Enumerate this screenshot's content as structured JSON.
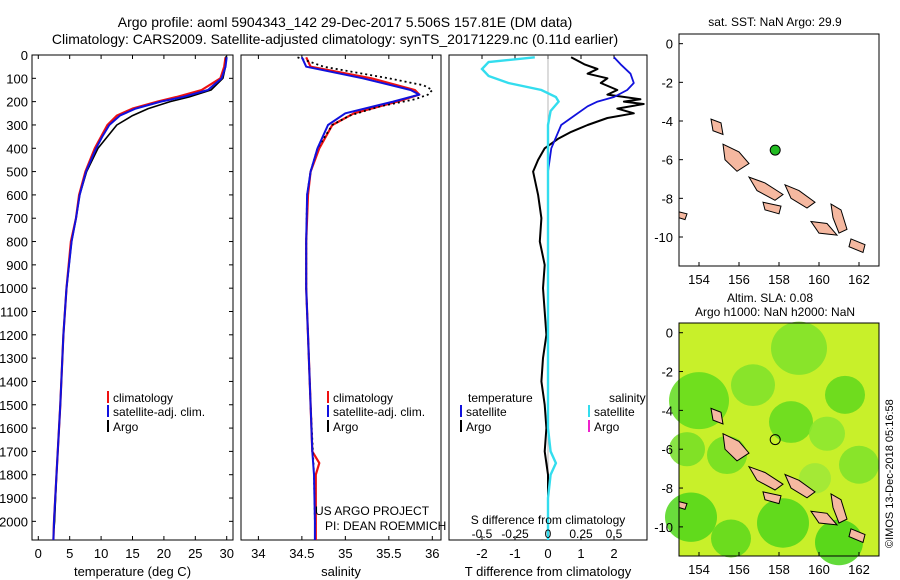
{
  "header": {
    "line1": "Argo profile: aoml 5904343_142 29-Dec-2017 5.506S 157.81E (DM data)",
    "line2": "Climatology: CARS2009. Satellite-adjusted climatology: synTS_20171229.nc (0.11d earlier)"
  },
  "watermark": "©IMOS 13-Dec-2018 05:16:58",
  "colors": {
    "climatology": "#ee1111",
    "satellite": "#1111dd",
    "argo": "#000000",
    "sat_salinity": "#33ddee",
    "argo_salinity": "#ee22cc",
    "land": "#f5b8a0",
    "float_marker": "#22bb22",
    "sla_map_base": "#c8f02a"
  },
  "chart_data": [
    {
      "id": "temperature",
      "type": "line",
      "xlabel": "temperature (deg C)",
      "ylabel": "",
      "xlim": [
        -1,
        31
      ],
      "ylim": [
        2080,
        0
      ],
      "xticks": [
        0,
        5,
        10,
        15,
        20,
        25,
        30
      ],
      "xtick_labels": [
        "0",
        "5",
        "10",
        "15",
        "20",
        "25",
        "30"
      ],
      "yticks": [
        0,
        100,
        200,
        300,
        400,
        500,
        600,
        700,
        800,
        900,
        1000,
        1100,
        1200,
        1300,
        1400,
        1500,
        1600,
        1700,
        1800,
        1900,
        2000
      ],
      "ytick_labels": [
        "0",
        "100",
        "200",
        "300",
        "400",
        "500",
        "600",
        "700",
        "800",
        "900",
        "1000",
        "1100",
        "1200",
        "1300",
        "1400",
        "1500",
        "1600",
        "1700",
        "1800",
        "1900",
        "2000"
      ],
      "legend": [
        "climatology",
        "satellite-adj. clim.",
        "Argo"
      ],
      "legend_position": "lower-right",
      "series": [
        {
          "name": "climatology",
          "depth": [
            10,
            50,
            100,
            150,
            180,
            200,
            230,
            260,
            300,
            350,
            400,
            500,
            600,
            700,
            800,
            1000,
            1200,
            1500,
            1800,
            2000,
            2080
          ],
          "values": [
            29.8,
            29.6,
            29.0,
            26.0,
            22.0,
            19.0,
            15.0,
            12.5,
            11.0,
            10.0,
            9.0,
            7.5,
            6.5,
            6.0,
            5.2,
            4.5,
            4.0,
            3.5,
            2.9,
            2.5,
            2.4
          ]
        },
        {
          "name": "satellite-adj. clim.",
          "depth": [
            10,
            50,
            100,
            150,
            180,
            200,
            230,
            260,
            300,
            350,
            400,
            500,
            600,
            700,
            800,
            1000,
            1200,
            1500,
            1800,
            2000,
            2080
          ],
          "values": [
            30.0,
            29.8,
            29.2,
            27.0,
            23.0,
            19.5,
            15.5,
            13.0,
            11.3,
            10.2,
            9.2,
            7.6,
            6.6,
            6.0,
            5.3,
            4.5,
            4.0,
            3.5,
            2.9,
            2.5,
            2.4
          ]
        },
        {
          "name": "Argo",
          "depth": [
            5,
            50,
            100,
            150,
            180,
            200,
            230,
            260,
            300,
            350,
            400,
            500,
            600,
            700,
            800,
            1000,
            1200,
            1500,
            1800,
            2000,
            2030
          ],
          "values": [
            29.9,
            29.8,
            29.4,
            27.5,
            24.0,
            21.0,
            17.5,
            15.0,
            12.5,
            11.0,
            9.5,
            7.7,
            6.6,
            6.0,
            5.3,
            4.5,
            4.0,
            3.5,
            2.9,
            2.6,
            2.5
          ]
        }
      ]
    },
    {
      "id": "salinity",
      "type": "line",
      "xlabel": "salinity",
      "xlim": [
        33.8,
        36.1
      ],
      "ylim": [
        2080,
        0
      ],
      "xticks": [
        34,
        34.5,
        35,
        35.5,
        36
      ],
      "xtick_labels": [
        "34",
        "34.5",
        "35",
        "35.5",
        "36"
      ],
      "legend": [
        "climatology",
        "satellite-adj. clim.",
        "Argo"
      ],
      "legend_position": "lower-right",
      "credits": [
        "US ARGO PROJECT",
        "PI: DEAN ROEMMICH"
      ],
      "series": [
        {
          "name": "climatology",
          "depth": [
            10,
            50,
            100,
            150,
            170,
            200,
            250,
            300,
            400,
            500,
            600,
            800,
            1000,
            1200,
            1500,
            1700,
            1750,
            1800,
            2000,
            2080
          ],
          "values": [
            34.55,
            34.6,
            35.3,
            35.8,
            35.85,
            35.6,
            35.1,
            34.85,
            34.7,
            34.6,
            34.57,
            34.55,
            34.55,
            34.57,
            34.6,
            34.62,
            34.7,
            34.66,
            34.66,
            34.66
          ]
        },
        {
          "name": "satellite-adj. clim.",
          "depth": [
            10,
            50,
            100,
            150,
            170,
            200,
            250,
            300,
            400,
            500,
            600,
            800,
            1000,
            1200,
            1500,
            1700,
            1800,
            2000,
            2080
          ],
          "values": [
            34.5,
            34.55,
            35.2,
            35.75,
            35.85,
            35.55,
            35.0,
            34.8,
            34.68,
            34.6,
            34.56,
            34.55,
            34.55,
            34.57,
            34.6,
            34.62,
            34.64,
            34.65,
            34.65
          ]
        },
        {
          "name": "Argo",
          "depth": [
            10,
            50,
            100,
            130,
            150,
            170,
            190,
            220,
            260,
            300,
            400,
            500,
            600,
            800,
            1000,
            1200,
            1500,
            1800,
            2000,
            2030
          ],
          "values": [
            34.45,
            34.75,
            35.5,
            35.9,
            36.0,
            35.95,
            35.8,
            35.4,
            35.05,
            34.85,
            34.68,
            34.6,
            34.56,
            34.55,
            34.55,
            34.57,
            34.6,
            34.64,
            34.65,
            34.65
          ]
        }
      ]
    },
    {
      "id": "difference",
      "type": "line",
      "xlabel": "T difference from climatology",
      "xlabel_top": "S difference from climatology",
      "xlim": [
        -3,
        3
      ],
      "ylim": [
        2080,
        0
      ],
      "xticks": [
        -2,
        -1,
        0,
        1,
        2
      ],
      "xtick_labels": [
        "-2",
        "-1",
        "0",
        "1",
        "2"
      ],
      "sticks": [
        -0.5,
        -0.25,
        0,
        0.25,
        0.5
      ],
      "stick_labels": [
        "-0.5",
        "-0.25",
        "0",
        "0.25",
        "0.5"
      ],
      "legend_left_title": "temperature",
      "legend_right_title": "salinity",
      "legend": [
        "satellite",
        "Argo",
        "satellite",
        "Argo"
      ],
      "series": [
        {
          "name": "T satellite",
          "depth": [
            10,
            40,
            80,
            120,
            150,
            180,
            200,
            220,
            260,
            300,
            400,
            500,
            600,
            800
          ],
          "values": [
            2.0,
            2.2,
            2.5,
            2.6,
            2.4,
            2.0,
            1.5,
            1.2,
            0.8,
            0.4,
            0.1,
            0.0,
            0.0,
            0.0
          ]
        },
        {
          "name": "T Argo",
          "depth": [
            10,
            40,
            60,
            80,
            100,
            120,
            150,
            170,
            190,
            200,
            210,
            230,
            250,
            270,
            300,
            330,
            360,
            400,
            450,
            500,
            600,
            700,
            800,
            900,
            1000,
            1100,
            1200,
            1300,
            1400,
            1500,
            1600,
            1700,
            1800,
            1900,
            2000
          ],
          "values": [
            0.7,
            1.1,
            1.5,
            1.2,
            1.8,
            1.6,
            2.1,
            1.8,
            2.8,
            2.3,
            2.9,
            2.1,
            2.6,
            1.8,
            1.2,
            0.7,
            0.3,
            -0.1,
            -0.3,
            -0.45,
            -0.3,
            -0.2,
            -0.25,
            -0.1,
            -0.15,
            -0.1,
            -0.05,
            -0.15,
            -0.2,
            -0.1,
            -0.05,
            -0.1,
            0.0,
            0.0,
            0.0
          ]
        },
        {
          "name": "S satellite",
          "depth": [
            10,
            30,
            60,
            90,
            120,
            150,
            180,
            200,
            240,
            300,
            350,
            400,
            600,
            800,
            1000,
            1200,
            1500,
            1600,
            1700,
            1750,
            1800,
            1900,
            2000,
            2080
          ],
          "values": [
            -0.1,
            -0.45,
            -0.5,
            -0.45,
            -0.3,
            -0.05,
            0.06,
            0.08,
            0.02,
            0.0,
            0.0,
            0.0,
            0.0,
            0.0,
            0.0,
            0.0,
            0.0,
            0.0,
            0.02,
            0.06,
            0.02,
            0.0,
            0.0,
            0.0
          ]
        }
      ]
    },
    {
      "id": "sst_map",
      "type": "scatter",
      "title": "sat. SST: NaN Argo: 29.9",
      "xlim": [
        153,
        163
      ],
      "ylim": [
        -11.5,
        0.5
      ],
      "xticks": [
        154,
        156,
        158,
        160,
        162
      ],
      "xtick_labels": [
        "154",
        "156",
        "158",
        "160",
        "162"
      ],
      "yticks": [
        0,
        -2,
        -4,
        -6,
        -8,
        -10
      ],
      "ytick_labels": [
        "0",
        "-2",
        "-4",
        "-6",
        "-8",
        "-10"
      ],
      "float_position": {
        "lon": 157.81,
        "lat": -5.506
      }
    },
    {
      "id": "sla_map",
      "type": "heatmap",
      "title_line1": "Altim. SLA: 0.08",
      "title_line2": "Argo h1000: NaN h2000: NaN",
      "xlim": [
        153,
        163
      ],
      "ylim": [
        -11.5,
        0.5
      ],
      "xticks": [
        154,
        156,
        158,
        160,
        162
      ],
      "xtick_labels": [
        "154",
        "156",
        "158",
        "160",
        "162"
      ],
      "yticks": [
        0,
        -2,
        -4,
        -6,
        -8,
        -10
      ],
      "ytick_labels": [
        "0",
        "-2",
        "-4",
        "-6",
        "-8",
        "-10"
      ],
      "float_position": {
        "lon": 157.81,
        "lat": -5.506
      }
    }
  ]
}
